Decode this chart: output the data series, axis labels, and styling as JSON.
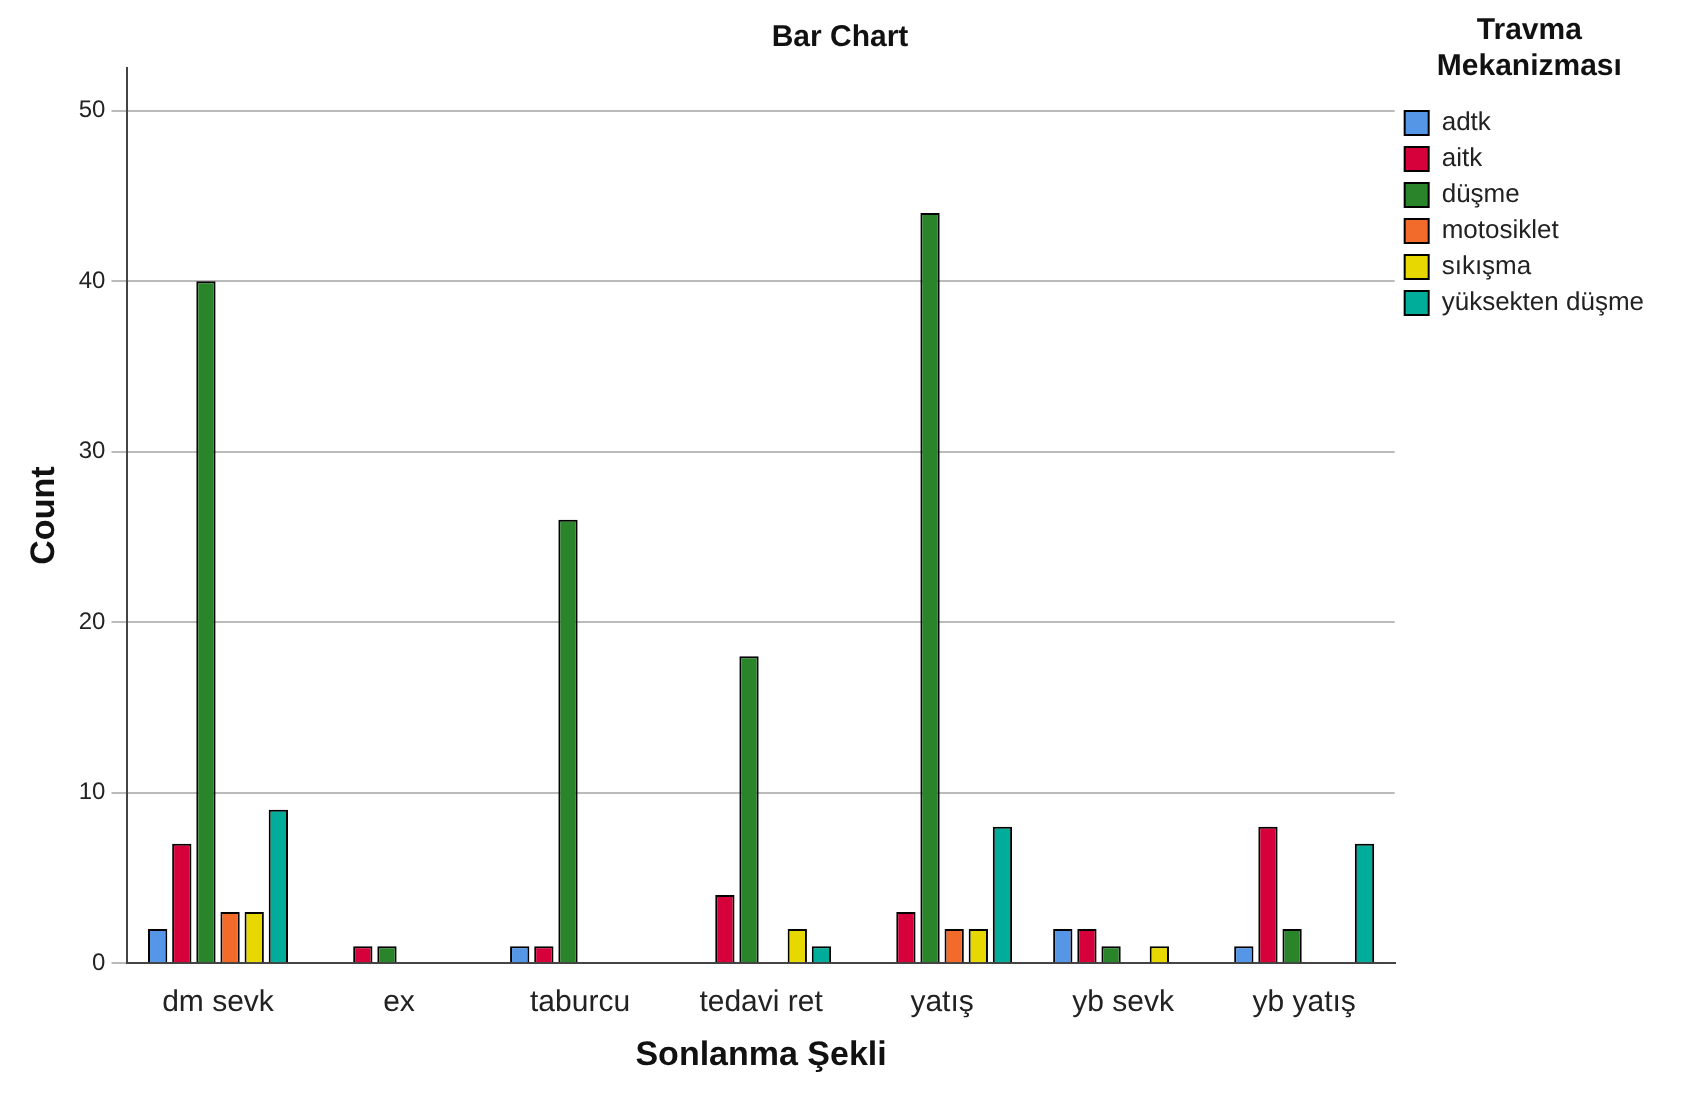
{
  "chart_data": {
    "type": "bar",
    "title": "Bar Chart",
    "xlabel": "Sonlanma Şekli",
    "ylabel": "Count",
    "legend_title": "Travma Mekanizması",
    "categories": [
      "dm sevk",
      "ex",
      "taburcu",
      "tedavi ret",
      "yatış",
      "yb sevk",
      "yb yatış"
    ],
    "series": [
      {
        "name": "adtk",
        "color": "#5596e6",
        "values": [
          2,
          null,
          1,
          null,
          null,
          2,
          1
        ]
      },
      {
        "name": "aitk",
        "color": "#d6003a",
        "values": [
          7,
          1,
          1,
          4,
          3,
          2,
          8
        ]
      },
      {
        "name": "düşme",
        "color": "#2a842a",
        "values": [
          40,
          1,
          26,
          18,
          44,
          1,
          2
        ]
      },
      {
        "name": "motosiklet",
        "color": "#f26b2a",
        "values": [
          3,
          null,
          null,
          null,
          2,
          null,
          null
        ]
      },
      {
        "name": "sıkışma",
        "color": "#e6d800",
        "values": [
          3,
          null,
          null,
          2,
          2,
          1,
          null
        ]
      },
      {
        "name": "yüksekten düşme",
        "color": "#00ad9a",
        "values": [
          9,
          null,
          null,
          1,
          8,
          null,
          7
        ]
      }
    ],
    "ylim": [
      0,
      52.5
    ],
    "yticks": [
      0,
      10,
      20,
      30,
      40,
      50
    ],
    "grid": "y",
    "legend": "right"
  }
}
